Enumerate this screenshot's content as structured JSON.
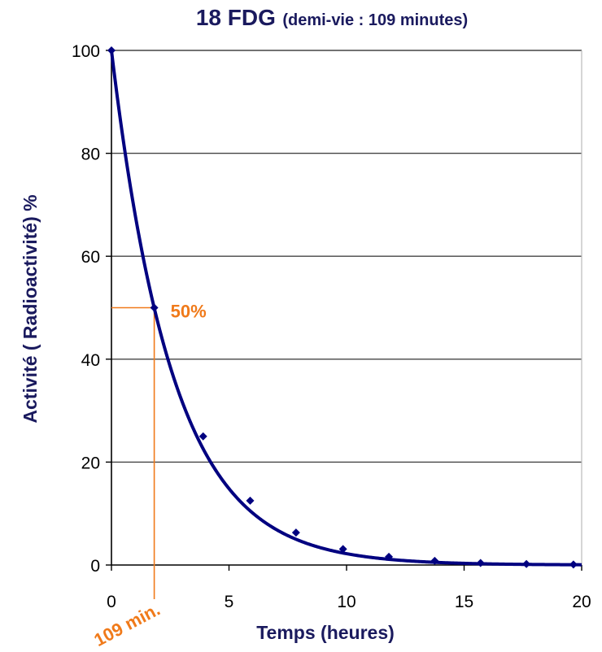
{
  "chart_data": {
    "type": "line",
    "title": "18 FDG",
    "subtitle": "(demi-vie : 109 minutes)",
    "xlabel": "Temps (heures)",
    "ylabel": "Activité ( Radioactivité) %",
    "xlim": [
      0,
      20
    ],
    "ylim": [
      0,
      100
    ],
    "x_ticks": [
      "0",
      "5",
      "10",
      "15",
      "20"
    ],
    "y_ticks": [
      "0",
      "20",
      "40",
      "60",
      "80",
      "100"
    ],
    "grid": "horizontal",
    "half_life_hours": 1.8167,
    "series": [
      {
        "color": "#000080",
        "x": [
          0,
          1.82,
          3.9,
          5.9,
          7.85,
          9.85,
          11.8,
          13.75,
          15.7,
          17.65,
          19.65
        ],
        "y": [
          100,
          50,
          25,
          12.5,
          6.3,
          3.1,
          1.6,
          0.8,
          0.4,
          0.2,
          0.1
        ]
      }
    ],
    "annotations": {
      "percent_label": "50%",
      "time_label": "109 min.",
      "x": 1.82,
      "y": 50,
      "color": "#f07a1a"
    }
  }
}
